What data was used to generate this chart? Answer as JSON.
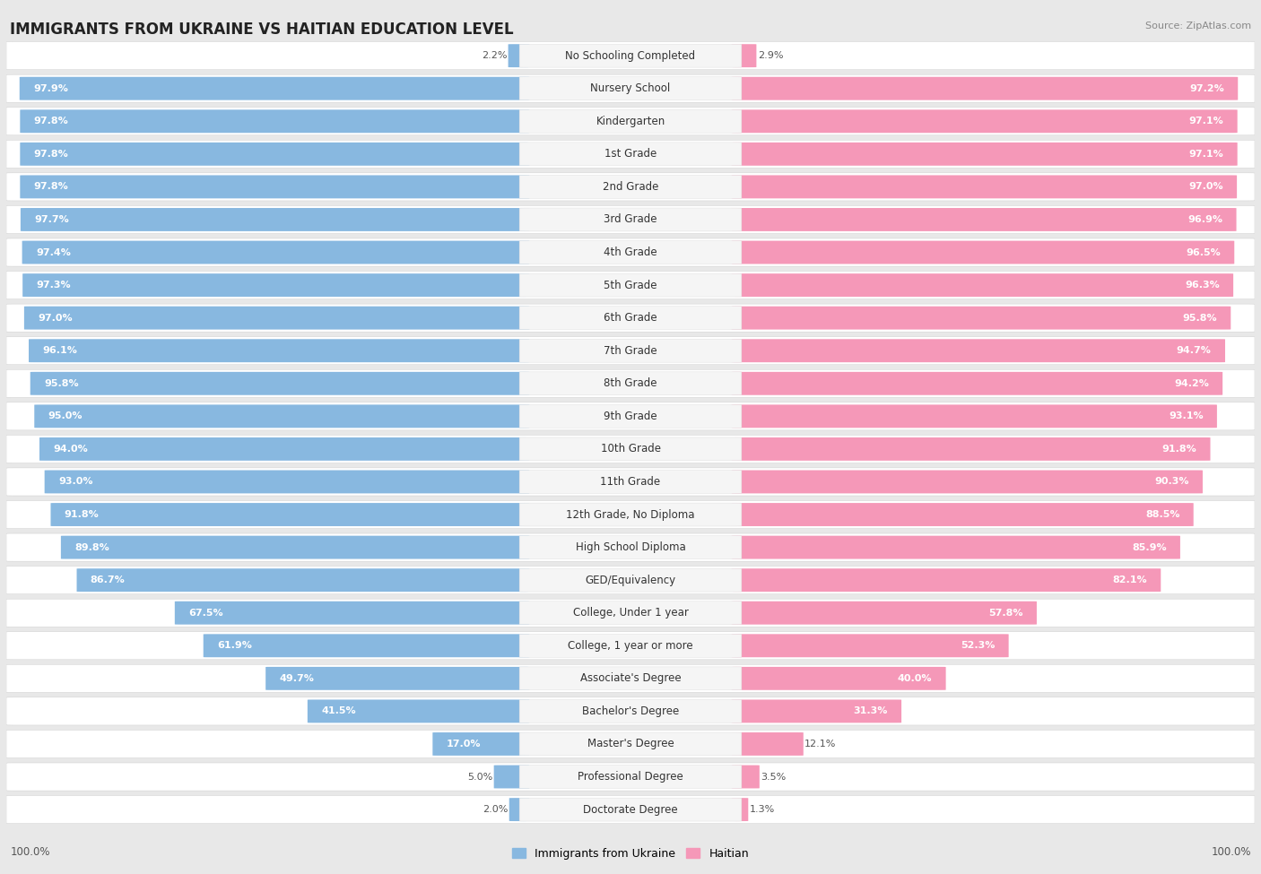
{
  "title": "IMMIGRANTS FROM UKRAINE VS HAITIAN EDUCATION LEVEL",
  "source": "Source: ZipAtlas.com",
  "categories": [
    "No Schooling Completed",
    "Nursery School",
    "Kindergarten",
    "1st Grade",
    "2nd Grade",
    "3rd Grade",
    "4th Grade",
    "5th Grade",
    "6th Grade",
    "7th Grade",
    "8th Grade",
    "9th Grade",
    "10th Grade",
    "11th Grade",
    "12th Grade, No Diploma",
    "High School Diploma",
    "GED/Equivalency",
    "College, Under 1 year",
    "College, 1 year or more",
    "Associate's Degree",
    "Bachelor's Degree",
    "Master's Degree",
    "Professional Degree",
    "Doctorate Degree"
  ],
  "ukraine_values": [
    2.2,
    97.9,
    97.8,
    97.8,
    97.8,
    97.7,
    97.4,
    97.3,
    97.0,
    96.1,
    95.8,
    95.0,
    94.0,
    93.0,
    91.8,
    89.8,
    86.7,
    67.5,
    61.9,
    49.7,
    41.5,
    17.0,
    5.0,
    2.0
  ],
  "haitian_values": [
    2.9,
    97.2,
    97.1,
    97.1,
    97.0,
    96.9,
    96.5,
    96.3,
    95.8,
    94.7,
    94.2,
    93.1,
    91.8,
    90.3,
    88.5,
    85.9,
    82.1,
    57.8,
    52.3,
    40.0,
    31.3,
    12.1,
    3.5,
    1.3
  ],
  "ukraine_color": "#88b8e0",
  "haitian_color": "#f598b8",
  "bg_color": "#e8e8e8",
  "row_color": "#ffffff",
  "center_label_color": "#f5f5f5",
  "label_fontsize": 8.5,
  "title_fontsize": 12,
  "value_fontsize": 8,
  "inside_text_threshold": 15
}
